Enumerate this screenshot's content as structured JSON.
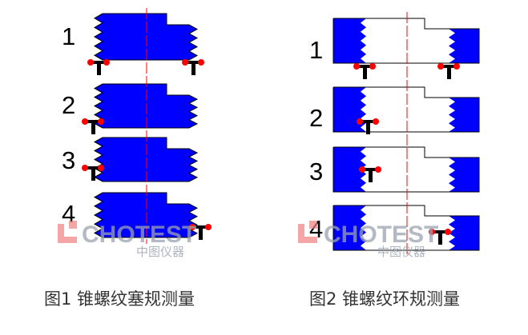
{
  "figure1": {
    "caption": "图1 锥螺纹塞规测量",
    "row_labels": [
      "1",
      "2",
      "3",
      "4"
    ]
  },
  "figure2": {
    "caption": "图2 锥螺纹环规测量",
    "row_labels": [
      "1",
      "2",
      "3",
      "4"
    ]
  },
  "watermark": {
    "brand": "CHOTEST",
    "sub": "中图仪器"
  },
  "colors": {
    "part": "#0000ff",
    "axis": "#ff0000",
    "contact": "#ff0000",
    "probe": "#000000",
    "logo": "#f08080"
  }
}
